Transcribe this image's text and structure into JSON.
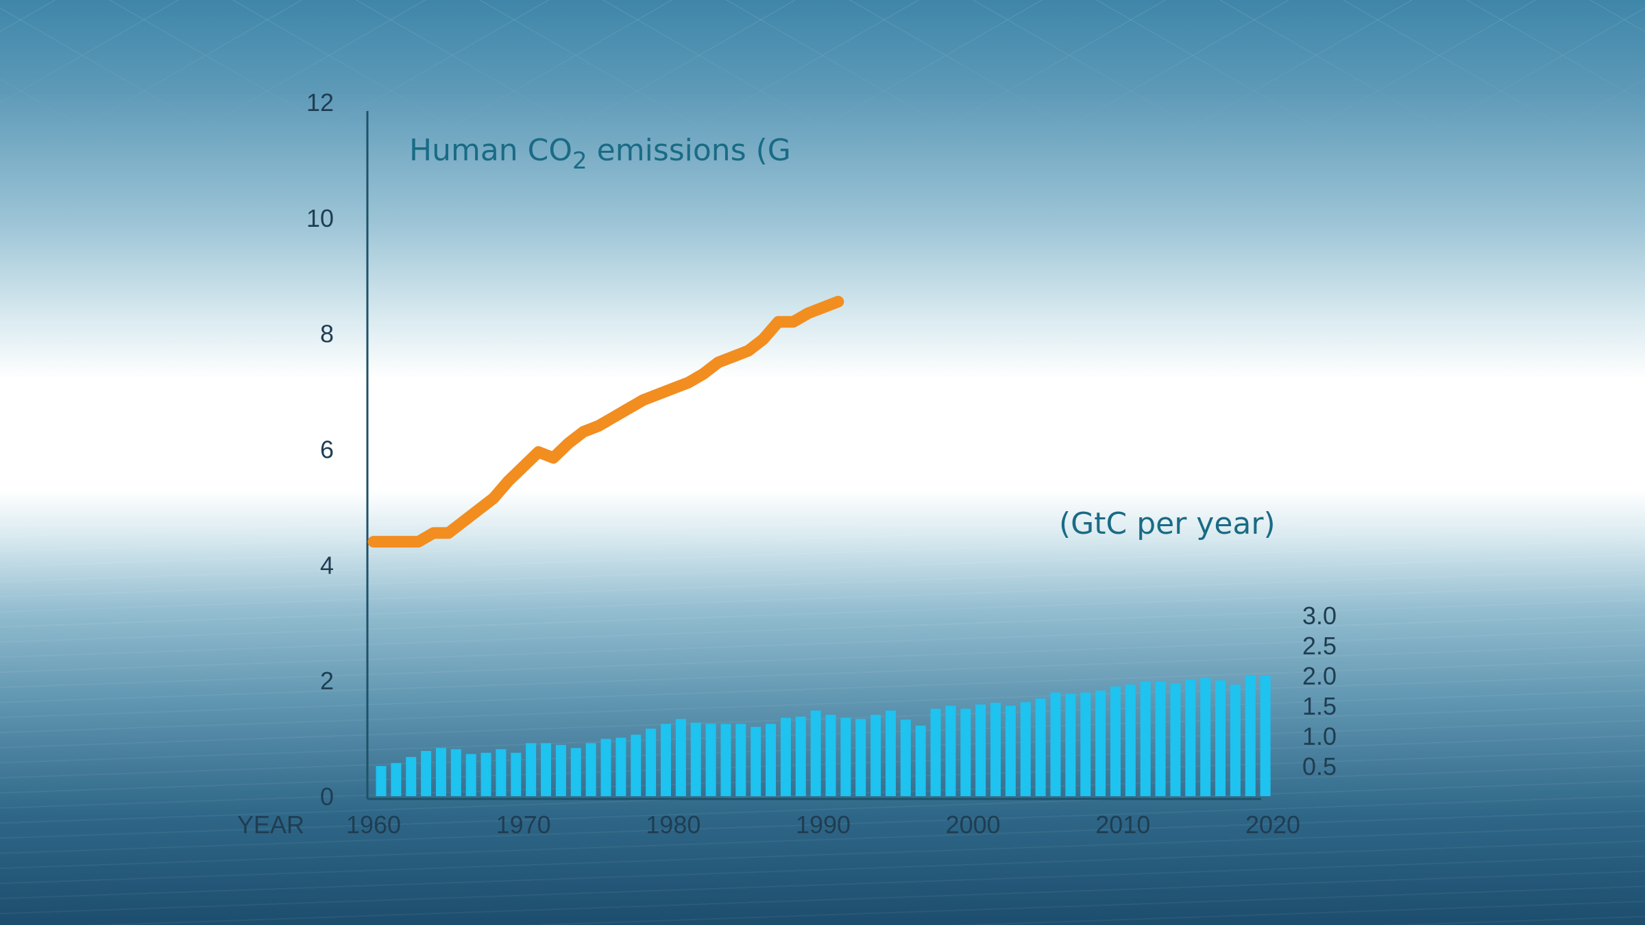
{
  "chart_data": [
    {
      "type": "line",
      "title_main": "Human CO",
      "title_sub": "2",
      "title_rest": " emissions (G",
      "ylim": [
        0,
        12
      ],
      "y_ticks": [
        "0",
        "2",
        "4",
        "6",
        "8",
        "10",
        "12"
      ],
      "x_label": "YEAR",
      "x_ticks": [
        "1960",
        "1970",
        "1980",
        "1990",
        "2000",
        "2010",
        "2020"
      ],
      "xlim": [
        1960,
        2020
      ],
      "color": "#f28d20",
      "series": [
        {
          "name": "Human CO2 emissions",
          "x": [
            1960,
            1961,
            1962,
            1963,
            1964,
            1965,
            1966,
            1967,
            1968,
            1969,
            1970,
            1971,
            1972,
            1973,
            1974,
            1975,
            1976,
            1977,
            1978,
            1979,
            1980,
            1981,
            1982,
            1983,
            1984,
            1985,
            1986,
            1987,
            1988,
            1989,
            1990,
            1991
          ],
          "values": [
            4.4,
            4.4,
            4.4,
            4.4,
            4.55,
            4.55,
            4.75,
            4.95,
            5.15,
            5.45,
            5.7,
            5.95,
            5.85,
            6.1,
            6.3,
            6.4,
            6.55,
            6.7,
            6.85,
            6.95,
            7.05,
            7.15,
            7.3,
            7.5,
            7.6,
            7.7,
            7.9,
            8.2,
            8.2,
            8.35,
            8.45,
            8.55
          ]
        }
      ]
    },
    {
      "type": "bar",
      "title": "(GtC per year)",
      "ylim": [
        0,
        3.0
      ],
      "y_ticks": [
        "0.5",
        "1.0",
        "1.5",
        "2.0",
        "2.5",
        "3.0"
      ],
      "color": "#1ec3f0",
      "series": [
        {
          "name": "GtC per year",
          "x": [
            1960,
            1961,
            1962,
            1963,
            1964,
            1965,
            1966,
            1967,
            1968,
            1969,
            1970,
            1971,
            1972,
            1973,
            1974,
            1975,
            1976,
            1977,
            1978,
            1979,
            1980,
            1981,
            1982,
            1983,
            1984,
            1985,
            1986,
            1987,
            1988,
            1989,
            1990,
            1991,
            1992,
            1993,
            1994,
            1995,
            1996,
            1997,
            1998,
            1999,
            2000,
            2001,
            2002,
            2003,
            2004,
            2005,
            2006,
            2007,
            2008,
            2009,
            2010,
            2011,
            2012,
            2013,
            2014,
            2015,
            2016,
            2017,
            2018,
            2019
          ],
          "values": [
            0.5,
            0.55,
            0.65,
            0.75,
            0.8,
            0.78,
            0.7,
            0.72,
            0.78,
            0.72,
            0.88,
            0.88,
            0.85,
            0.8,
            0.88,
            0.95,
            0.97,
            1.02,
            1.12,
            1.2,
            1.28,
            1.22,
            1.2,
            1.2,
            1.2,
            1.15,
            1.2,
            1.3,
            1.32,
            1.42,
            1.35,
            1.3,
            1.28,
            1.35,
            1.42,
            1.27,
            1.17,
            1.45,
            1.5,
            1.45,
            1.52,
            1.55,
            1.5,
            1.56,
            1.62,
            1.72,
            1.7,
            1.72,
            1.75,
            1.82,
            1.85,
            1.9,
            1.9,
            1.87,
            1.93,
            1.96,
            1.92,
            1.85,
            2.0,
            2.0
          ]
        }
      ]
    }
  ]
}
